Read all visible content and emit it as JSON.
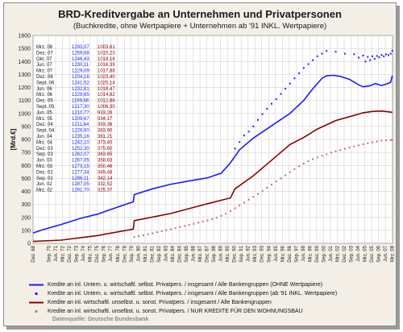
{
  "chart_data": {
    "type": "line",
    "title": "BRD-Kreditvergabe an Unternehmen und Privatpersonen",
    "subtitle": "(Buchkredite, ohne Wertpapiere + Unternehmen ab '91 INKL. Wertpapiere)",
    "ylabel": "[Mrd.€]",
    "ylim": [
      0,
      1600
    ],
    "yticks": [
      0,
      100,
      200,
      300,
      400,
      500,
      600,
      700,
      800,
      900,
      1000,
      1100,
      1200,
      1300,
      1400,
      1500,
      1600
    ],
    "xlim": [
      1968.95,
      2008.2
    ],
    "grid": true,
    "xtick_labels": [
      "Dez. 68",
      "Sep. 70",
      "Jun. 71",
      "Mrz. 72",
      "Dez. 72",
      "Sep. 73",
      "Jun. 74",
      "Mrz. 75",
      "Dez. 75",
      "Sep. 76",
      "Jun. 77",
      "Mrz. 78",
      "Dez. 78",
      "Sep. 79",
      "Jun. 80",
      "Mrz. 81",
      "Dez. 81",
      "Sep. 82",
      "Jun. 83",
      "Mrz. 84",
      "Dez. 84",
      "Sep. 85",
      "Jun. 86",
      "Mrz. 87",
      "Dez. 87",
      "Sep. 88",
      "Jun. 89",
      "Mrz. 90",
      "Dez. 90",
      "Sep. 91",
      "Jun. 92",
      "Mrz. 93",
      "Dez. 93",
      "Sep. 94",
      "Jun. 95",
      "Mrz. 96",
      "Dez. 96",
      "Sep. 97",
      "Jun. 98",
      "Mrz. 99",
      "Dez. 99",
      "Sep. 00",
      "Jun. 01",
      "Mrz. 02",
      "Dez. 02",
      "Sep. 03",
      "Jun. 04",
      "Mrz. 05",
      "Dez. 05",
      "Sep. 06",
      "Jun. 07",
      "Mrz. 08",
      "Dez. 08"
    ],
    "xtick_positions": [
      1968.95,
      1970.67,
      1971.42,
      1972.17,
      1972.92,
      1973.67,
      1974.42,
      1975.17,
      1975.92,
      1976.67,
      1977.42,
      1978.17,
      1978.92,
      1979.67,
      1980.42,
      1981.17,
      1981.92,
      1982.67,
      1983.42,
      1984.17,
      1984.92,
      1985.67,
      1986.42,
      1987.17,
      1987.92,
      1988.67,
      1989.42,
      1990.17,
      1990.92,
      1991.67,
      1992.42,
      1993.17,
      1993.92,
      1994.67,
      1995.42,
      1996.17,
      1996.92,
      1997.67,
      1998.42,
      1999.17,
      1999.92,
      2000.67,
      2001.42,
      2002.17,
      2002.92,
      2003.67,
      2004.42,
      2005.17,
      2005.92,
      2006.67,
      2007.42,
      2008.17,
      2008.92
    ],
    "series": [
      {
        "name": "Kredite an inl. Untern. u. wirtschaftl. selbst. Privatpers. / insgesamt / Alle Bankengruppen (OHNE Wertpapiere)",
        "color": "#1a1aff",
        "style": "line",
        "x": [
          1968.95,
          1970.0,
          1972.0,
          1974.0,
          1976.0,
          1978.0,
          1979.9,
          1980.0,
          1982.0,
          1984.0,
          1986.0,
          1988.0,
          1989.5,
          1990.5,
          1991.5,
          1993.0,
          1995.0,
          1997.0,
          1998.5,
          1999.5,
          2000.5,
          2001.0,
          2001.8,
          2002.5,
          2003.5,
          2004.5,
          2005.0,
          2005.7,
          2006.3,
          2007.0,
          2007.5,
          2008.0,
          2008.17
        ],
        "y": [
          80,
          105,
          145,
          190,
          225,
          275,
          320,
          375,
          420,
          455,
          480,
          505,
          540,
          620,
          720,
          810,
          905,
          1000,
          1100,
          1190,
          1270,
          1290,
          1293,
          1285,
          1262,
          1220,
          1205,
          1212,
          1230,
          1215,
          1225,
          1240,
          1291
        ]
      },
      {
        "name": "Kredite an inl. Untern. u. wirtschaftl. selbst. Privatpers. / insgesamt / Alle Bankengruppen (ab '91 INKL. Wertpapiere)",
        "color": "#1a1aff",
        "style": "dots",
        "x": [
          1991.0,
          1991.5,
          1992.0,
          1992.5,
          1993.0,
          1993.5,
          1994.0,
          1994.5,
          1995.0,
          1995.5,
          1996.0,
          1996.5,
          1997.0,
          1997.5,
          1998.0,
          1998.5,
          1999.0,
          1999.5,
          2000.0,
          2000.5,
          2001.0,
          2002.0,
          2003.0,
          2004.0,
          2004.5,
          2005.0,
          2005.25,
          2005.5,
          2005.75,
          2006.0,
          2006.25,
          2006.5,
          2006.75,
          2007.0,
          2007.25,
          2007.5,
          2007.75,
          2008.0,
          2008.17
        ],
        "y": [
          730,
          780,
          830,
          860,
          900,
          950,
          995,
          1035,
          1075,
          1110,
          1150,
          1190,
          1230,
          1270,
          1310,
          1350,
          1380,
          1410,
          1440,
          1460,
          1480,
          1475,
          1460,
          1455,
          1430,
          1445,
          1400,
          1435,
          1410,
          1440,
          1420,
          1442,
          1432,
          1450,
          1440,
          1455,
          1448,
          1460,
          1482
        ]
      },
      {
        "name": "Kredite an inl. wirtschaftl. unselbst. u. sonst. Privatpers. / insgesamt / Alle Bankengruppen",
        "color": "#8b0000",
        "style": "line",
        "x": [
          1968.95,
          1972.0,
          1976.0,
          1979.9,
          1980.0,
          1984.0,
          1988.0,
          1990.5,
          1991.0,
          1993.0,
          1995.0,
          1997.0,
          1998.5,
          2000.0,
          2002.0,
          2004.0,
          2005.0,
          2006.0,
          2007.0,
          2008.17
        ],
        "y": [
          15,
          25,
          60,
          110,
          175,
          230,
          305,
          350,
          420,
          520,
          640,
          760,
          815,
          880,
          945,
          985,
          1005,
          1015,
          1018,
          1009
        ]
      },
      {
        "name": "Kredite an inl. wirtschaftl. unselbst. u. sonst. Privatpers. / NUR KREDITE FÜR DEN WOHNUNGSBAU",
        "color": "#c07070",
        "style": "dots",
        "x": [
          1980.0,
          1980.5,
          1981.0,
          1981.5,
          1982.0,
          1982.5,
          1983.0,
          1983.5,
          1984.0,
          1984.5,
          1985.0,
          1985.5,
          1986.0,
          1986.5,
          1987.0,
          1987.5,
          1988.0,
          1988.5,
          1989.0,
          1989.5,
          1990.0,
          1990.5,
          1991.0,
          1991.5,
          1992.0,
          1992.5,
          1993.0,
          1993.5,
          1994.0,
          1994.5,
          1995.0,
          1995.5,
          1996.0,
          1996.5,
          1997.0,
          1997.5,
          1998.0,
          1998.5,
          1999.0,
          1999.5,
          2000.0,
          2000.5,
          2001.0,
          2001.5,
          2002.0,
          2002.5,
          2003.0,
          2003.5,
          2004.0,
          2004.5,
          2005.0,
          2005.5,
          2006.0,
          2006.5,
          2007.0,
          2007.5,
          2008.0,
          2008.17
        ],
        "y": [
          48,
          55,
          62,
          70,
          78,
          86,
          94,
          102,
          110,
          118,
          126,
          134,
          142,
          150,
          160,
          168,
          176,
          186,
          198,
          212,
          228,
          248,
          270,
          292,
          314,
          336,
          358,
          380,
          404,
          428,
          452,
          476,
          500,
          524,
          548,
          572,
          594,
          614,
          632,
          648,
          662,
          674,
          686,
          698,
          708,
          718,
          728,
          738,
          746,
          754,
          762,
          770,
          778,
          784,
          790,
          792,
          795,
          797
        ]
      }
    ],
    "table": {
      "rows": [
        {
          "date": "Mrz. 08",
          "v1": "1293,07",
          "v2": "1003,61"
        },
        {
          "date": "Dez. 07",
          "v1": "1259,68",
          "v2": "1015,23"
        },
        {
          "date": "Okt. 07",
          "v1": "1246,43",
          "v2": "1018,16"
        },
        {
          "date": "Jun. 07",
          "v1": "1230,11",
          "v2": "1016,39"
        },
        {
          "date": "Mrz. 07",
          "v1": "1229,09",
          "v2": "1017,88"
        },
        {
          "date": "Dez. 06",
          "v1": "1204,16",
          "v2": "1023,40"
        },
        {
          "date": "Sept. 06",
          "v1": "1241,52",
          "v2": "1025,14"
        },
        {
          "date": "Jun. 06",
          "v1": "1232,81",
          "v2": "1018,47"
        },
        {
          "date": "Mrz. 06",
          "v1": "1229,65",
          "v2": "1014,82"
        },
        {
          "date": "Dez. 05",
          "v1": "1199,66",
          "v2": "1012,88"
        },
        {
          "date": "Sept. 05",
          "v1": "1217,30",
          "v2": "1006,30"
        },
        {
          "date": "Jun. 05",
          "v1": "1210,77",
          "v2": "933,26"
        },
        {
          "date": "Mrz. 05",
          "v1": "1209,67",
          "v2": "934,17"
        },
        {
          "date": "Dez. 04",
          "v1": "1211,64",
          "v2": "393,36"
        },
        {
          "date": "Sept. 04",
          "v1": "1226,60",
          "v2": "383,90"
        },
        {
          "date": "Jun. 04",
          "v1": "1235,16",
          "v2": "381,21"
        },
        {
          "date": "Mrz. 04",
          "v1": "1242,10",
          "v2": "373,40"
        },
        {
          "date": "Dez. 03",
          "v1": "1252,30",
          "v2": "375,60"
        },
        {
          "date": "Sep. 03",
          "v1": "1262,07",
          "v2": "363,65"
        },
        {
          "date": "Jun. 03",
          "v1": "1267,05",
          "v2": "358,83"
        },
        {
          "date": "Mrz. 03",
          "v1": "1273,15",
          "v2": "350,46"
        },
        {
          "date": "Dez. 02",
          "v1": "1277,34",
          "v2": "349,48"
        },
        {
          "date": "Sep. 02",
          "v1": "1286,11",
          "v2": "342,14"
        },
        {
          "date": "Jun. 02",
          "v1": "1287,05",
          "v2": "332,52"
        },
        {
          "date": "Mrz. 02",
          "v1": "1291,70",
          "v2": "325,37"
        }
      ]
    },
    "source": "Datenquelle: Deutsche Bundesbank"
  }
}
